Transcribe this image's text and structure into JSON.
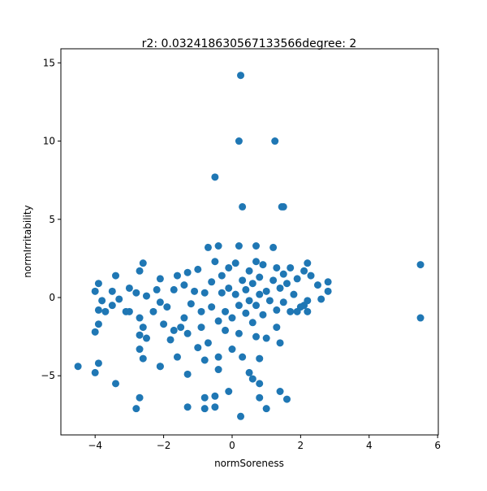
{
  "chart_data": {
    "type": "scatter",
    "title": "r2: 0.032418630567133566degree: 2",
    "xlabel": "normSoreness",
    "ylabel": "normIrritability",
    "color": "#1f77b4",
    "xlim": [
      -5.0,
      6.02
    ],
    "ylim": [
      -8.78,
      15.9
    ],
    "xticks": [
      {
        "value": -4,
        "label": "−4"
      },
      {
        "value": -2,
        "label": "−2"
      },
      0,
      2,
      4,
      6
    ],
    "yticks": [
      {
        "value": -5,
        "label": "−5"
      },
      0,
      5,
      10,
      15
    ],
    "x": [
      0.25,
      0.2,
      1.25,
      -0.5,
      0.3,
      1.5,
      1.45,
      5.5,
      5.5,
      -4.5,
      -4,
      -3.9,
      -3.4,
      -2.7,
      -2.8,
      -1.3,
      -0.8,
      -0.5,
      -0.5,
      -0.8,
      0.25,
      -0.1,
      0.8,
      0.6,
      0.8,
      1,
      1.4,
      1.6,
      -2.1,
      -1.3,
      -0.4,
      -4,
      -3.9,
      -3.8,
      -3.9,
      -3.7,
      -3.5,
      -3.4,
      -3.5,
      -3.3,
      -3.9,
      -4,
      -3,
      -3,
      -2.8,
      -2.7,
      -2.6,
      -2.7,
      -2.6,
      -2.7,
      -2.5,
      -2.6,
      -2.7,
      -2.5,
      -2.3,
      -2.2,
      -2.1,
      -2.1,
      -2.0,
      -2.1,
      -1.9,
      -1.8,
      -1.7,
      -1.7,
      -1.6,
      -1.6,
      -1.5,
      -1.4,
      -1.4,
      -1.3,
      -1.3,
      -1.2,
      -1.1,
      -1.0,
      -1.0,
      -0.9,
      -0.9,
      -0.8,
      -0.8,
      -0.7,
      -0.7,
      -0.6,
      -0.6,
      -0.5,
      -0.4,
      -0.4,
      -0.4,
      -0.3,
      -0.3,
      -0.2,
      -0.2,
      -0.1,
      -0.1,
      0,
      0,
      0.1,
      0.1,
      0.2,
      0.2,
      0.2,
      0.3,
      0.3,
      0.4,
      0.4,
      0.5,
      0.5,
      0.5,
      0.6,
      0.6,
      0.7,
      0.7,
      0.7,
      0.7,
      0.8,
      0.8,
      0.8,
      0.9,
      0.9,
      1.0,
      1.0,
      1.1,
      1.2,
      1.2,
      1.3,
      1.3,
      1.3,
      1.4,
      1.4,
      1.5,
      1.5,
      1.6,
      1.7,
      1.7,
      1.8,
      1.9,
      2.0,
      2.1,
      2.2,
      2.2,
      2.3,
      2.2,
      2.5,
      2.6,
      2.8,
      2.8,
      1.9,
      2.1,
      -3.1
    ],
    "values": [
      14.2,
      10,
      10,
      7.7,
      5.8,
      5.8,
      5.8,
      2.1,
      -1.3,
      -4.4,
      -4.8,
      -4.2,
      -5.5,
      -6.4,
      -7.1,
      -7,
      -6.4,
      -6.3,
      -7,
      -7.1,
      -7.6,
      -6,
      -6.4,
      -5.2,
      -5.5,
      -7.1,
      -6,
      -6.5,
      -4.4,
      -4.9,
      -4.6,
      0.4,
      0.9,
      -0.2,
      -0.8,
      -0.9,
      0.4,
      1.4,
      -0.5,
      -0.1,
      -1.7,
      -2.2,
      0.6,
      -0.9,
      0.3,
      1.7,
      2.2,
      -1.3,
      -1.9,
      -2.4,
      -2.6,
      -3.9,
      -3.3,
      0.1,
      -0.9,
      0.5,
      1.2,
      -0.3,
      -1.7,
      -4.4,
      -0.6,
      -2.7,
      -2.1,
      0.5,
      1.4,
      -3.8,
      -1.9,
      0.8,
      -1.3,
      1.6,
      -2.3,
      -0.4,
      0.4,
      1.8,
      -3.2,
      -0.9,
      -1.9,
      0.3,
      -4.0,
      3.2,
      -2.9,
      1.0,
      -0.6,
      2.3,
      3.3,
      -1.5,
      -3.8,
      0.3,
      1.4,
      -2.1,
      -0.9,
      0.6,
      1.9,
      -1.3,
      -3.3,
      2.2,
      0.2,
      3.3,
      -0.5,
      -2.3,
      1.1,
      -3.8,
      0.5,
      -1.0,
      1.7,
      -0.2,
      -4.8,
      0.9,
      -1.6,
      2.3,
      3.3,
      -0.5,
      -2.5,
      0.2,
      1.3,
      -3.9,
      -1.1,
      2.1,
      0.4,
      -2.6,
      -0.2,
      1.1,
      3.2,
      1.9,
      -0.8,
      -1.9,
      0.6,
      -2.9,
      1.5,
      -0.3,
      0.9,
      1.9,
      -0.9,
      0.2,
      1.2,
      -0.6,
      1.7,
      2.2,
      -0.2,
      1.4,
      -0.9,
      0.8,
      -0.1,
      0.4,
      1.0,
      -0.9,
      -0.5,
      -0.9
    ]
  }
}
